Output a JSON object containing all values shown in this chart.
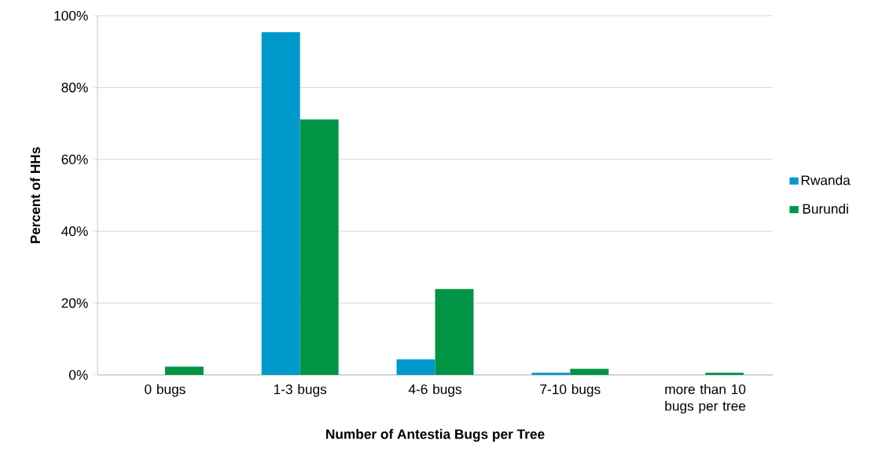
{
  "chart_data": {
    "type": "bar",
    "xlabel": "Number of Antestia Bugs per Tree",
    "ylabel": "Percent of HHs",
    "categories": [
      "0 bugs",
      "1-3 bugs",
      "4-6 bugs",
      "7-10 bugs",
      "more than 10 bugs per tree"
    ],
    "series": [
      {
        "name": "Rwanda",
        "color": "#0099cc",
        "values": [
          0,
          95.4,
          4.3,
          0.6,
          0
        ]
      },
      {
        "name": "Burundi",
        "color": "#009444",
        "values": [
          2.3,
          71.1,
          23.9,
          1.7,
          0.6
        ]
      }
    ],
    "ylim": [
      0,
      100
    ],
    "yticks": [
      {
        "value": 0,
        "label": "0%"
      },
      {
        "value": 20,
        "label": "20%"
      },
      {
        "value": 40,
        "label": "40%"
      },
      {
        "value": 60,
        "label": "60%"
      },
      {
        "value": 80,
        "label": "80%"
      },
      {
        "value": 100,
        "label": "100%"
      }
    ],
    "grid": "y",
    "legend": "right"
  }
}
